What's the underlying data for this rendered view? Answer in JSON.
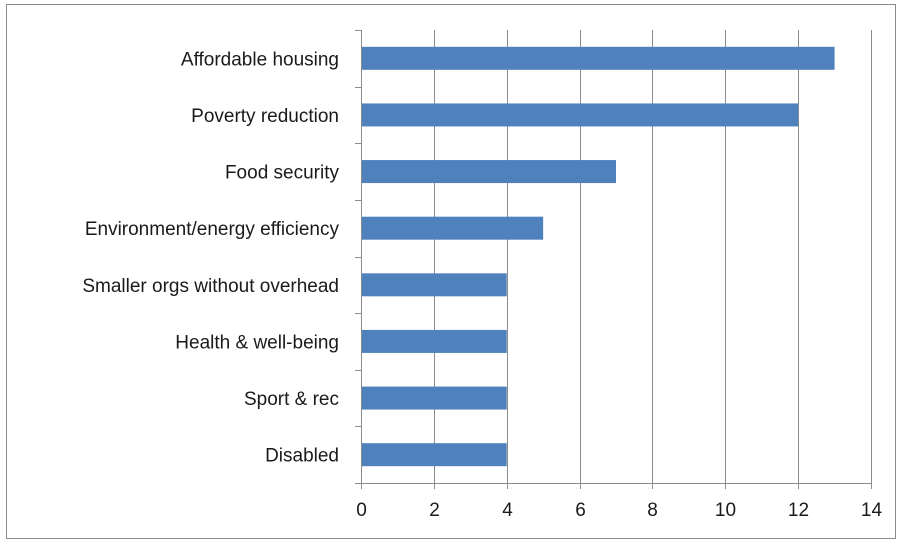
{
  "chart_data": {
    "type": "bar",
    "orientation": "horizontal",
    "title": "",
    "xlabel": "",
    "ylabel": "",
    "categories": [
      "Affordable housing",
      "Poverty reduction",
      "Food security",
      "Environment/energy efficiency",
      "Smaller orgs without overhead",
      "Health & well-being",
      "Sport & rec",
      "Disabled"
    ],
    "values": [
      13,
      12,
      7,
      5,
      4,
      4,
      4,
      4
    ],
    "xlim": [
      0,
      14
    ],
    "xticks": [
      "0",
      "2",
      "4",
      "6",
      "8",
      "10",
      "12",
      "14"
    ],
    "grid": "vertical",
    "legend": "none",
    "bar_color": "#4f81bd"
  }
}
